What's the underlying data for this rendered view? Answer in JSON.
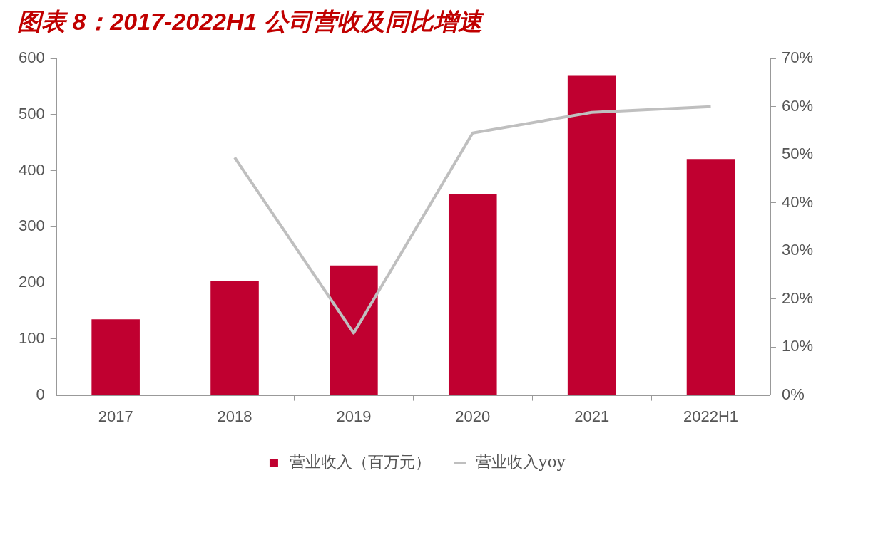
{
  "chart_data": {
    "type": "bar",
    "title": "图表 8：2017-2022H1 公司营收及同比增速",
    "categories": [
      "2017",
      "2018",
      "2019",
      "2020",
      "2021",
      "2022H1"
    ],
    "series": [
      {
        "name": "营业收入（百万元）",
        "color": "#c00030",
        "values": [
          135,
          204,
          231,
          358,
          569,
          421
        ]
      },
      {
        "name": "营业收入yoy",
        "type": "line",
        "axis": "y2",
        "color": "#bfbfbf",
        "values": [
          null,
          49.4,
          12.9,
          54.5,
          58.8,
          60.0
        ]
      }
    ],
    "ylim": [
      0,
      600
    ],
    "yticks": [
      0,
      100,
      200,
      300,
      400,
      500,
      600
    ],
    "y2lim": [
      0,
      70
    ],
    "y2ticks": [
      {
        "value": 0,
        "label": "0%"
      },
      {
        "value": 10,
        "label": "10%"
      },
      {
        "value": 20,
        "label": "20%"
      },
      {
        "value": 30,
        "label": "30%"
      },
      {
        "value": 40,
        "label": "40%"
      },
      {
        "value": 50,
        "label": "50%"
      },
      {
        "value": 60,
        "label": "60%"
      },
      {
        "value": 70,
        "label": "70%"
      }
    ],
    "grid": false,
    "legend": "bottom",
    "marker": "none"
  }
}
